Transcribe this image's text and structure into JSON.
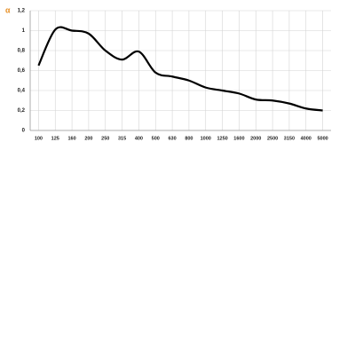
{
  "chart_data": {
    "type": "line",
    "y_label": "α",
    "categories": [
      "100",
      "125",
      "160",
      "200",
      "250",
      "315",
      "400",
      "500",
      "630",
      "800",
      "1000",
      "1250",
      "1600",
      "2000",
      "2500",
      "3150",
      "4000",
      "5000"
    ],
    "series": [
      {
        "name": "α",
        "color": "#000000",
        "values": [
          0.65,
          1.01,
          1.0,
          0.97,
          0.8,
          0.71,
          0.79,
          0.58,
          0.54,
          0.5,
          0.43,
          0.4,
          0.37,
          0.31,
          0.3,
          0.27,
          0.22,
          0.2
        ]
      }
    ],
    "ylim": [
      0,
      1.2
    ],
    "yticks": [
      0,
      {
        "value": 0.2,
        "label": "0,2"
      },
      {
        "value": 0.4,
        "label": "0,4"
      },
      {
        "value": 0.6,
        "label": "0,6"
      },
      {
        "value": 0.8,
        "label": "0,8"
      },
      1,
      {
        "value": 1.2,
        "label": "1,2"
      }
    ],
    "grid": true
  }
}
